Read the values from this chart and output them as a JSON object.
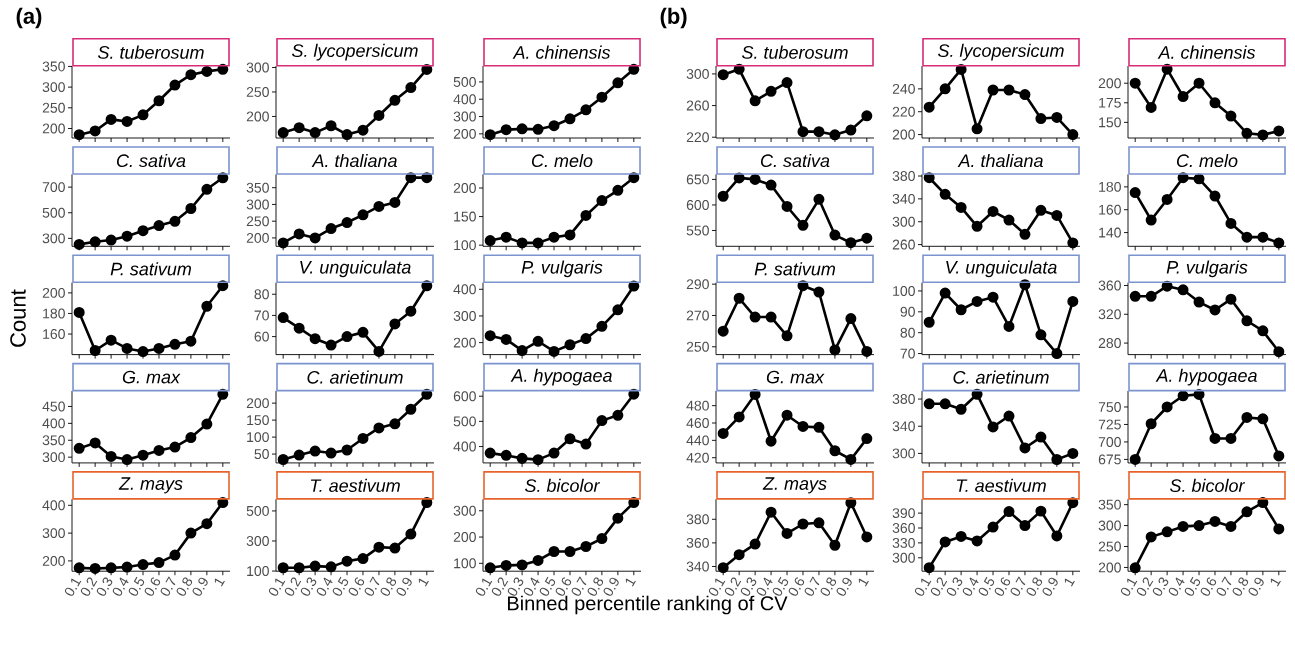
{
  "chart_data": [
    {
      "type": "line",
      "title": "S. tuberosum",
      "annotations": [
        "(a)"
      ],
      "categories": [
        null,
        null,
        null,
        null,
        null,
        null,
        null,
        null,
        null,
        null
      ],
      "values": [
        185,
        194,
        222,
        217,
        233,
        267,
        305,
        330,
        338,
        343
      ],
      "color": "#000000",
      "marker": "circle",
      "ylim": [
        177,
        351
      ],
      "yticks": [
        200,
        250,
        300,
        350
      ],
      "tick_labels": "y"
    },
    {
      "type": "line",
      "title": "S. lycopersicum",
      "categories": [
        null,
        null,
        null,
        null,
        null,
        null,
        null,
        null,
        null,
        null
      ],
      "values": [
        167,
        177,
        167,
        181,
        163,
        172,
        202,
        233,
        259,
        296
      ],
      "color": "#000000",
      "marker": "circle",
      "ylim": [
        156,
        303
      ],
      "yticks": [
        200,
        250,
        300
      ],
      "tick_labels": "y"
    },
    {
      "type": "line",
      "title": "A. chinensis",
      "categories": [
        null,
        null,
        null,
        null,
        null,
        null,
        null,
        null,
        null,
        null
      ],
      "values": [
        195,
        224,
        229,
        226,
        247,
        287,
        339,
        412,
        495,
        573
      ],
      "color": "#000000",
      "marker": "circle",
      "ylim": [
        176,
        592
      ],
      "yticks": [
        200,
        300,
        400,
        500
      ],
      "tick_labels": "y"
    },
    {
      "type": "line",
      "title": "C. sativa",
      "categories": [
        null,
        null,
        null,
        null,
        null,
        null,
        null,
        null,
        null,
        null
      ],
      "values": [
        253,
        273,
        287,
        317,
        360,
        400,
        433,
        533,
        683,
        773
      ],
      "color": "#000000",
      "marker": "circle",
      "ylim": [
        238,
        800
      ],
      "yticks": [
        300,
        500,
        700
      ],
      "tick_labels": "y"
    },
    {
      "type": "line",
      "title": "A. thaliana",
      "categories": [
        null,
        null,
        null,
        null,
        null,
        null,
        null,
        null,
        null,
        null
      ],
      "values": [
        185,
        212,
        200,
        228,
        246,
        269,
        294,
        306,
        380,
        380
      ],
      "color": "#000000",
      "marker": "circle",
      "ylim": [
        175,
        390
      ],
      "yticks": [
        200,
        250,
        300,
        350
      ],
      "tick_labels": "y"
    },
    {
      "type": "line",
      "title": "C. melo",
      "categories": [
        null,
        null,
        null,
        null,
        null,
        null,
        null,
        null,
        null,
        null
      ],
      "values": [
        108,
        114,
        104,
        104,
        114,
        118,
        152,
        178,
        196,
        218
      ],
      "color": "#000000",
      "marker": "circle",
      "ylim": [
        98,
        224
      ],
      "yticks": [
        100,
        150,
        200
      ],
      "tick_labels": "y"
    },
    {
      "type": "line",
      "title": "P. sativum",
      "ylabel": "Count",
      "categories": [
        null,
        null,
        null,
        null,
        null,
        null,
        null,
        null,
        null,
        null
      ],
      "values": [
        181,
        144,
        154,
        146,
        143,
        146,
        150,
        153,
        187,
        207
      ],
      "color": "#000000",
      "marker": "circle",
      "ylim": [
        140,
        210
      ],
      "yticks": [
        160,
        180,
        200
      ],
      "tick_labels": "y"
    },
    {
      "type": "line",
      "title": "V. unguiculata",
      "categories": [
        null,
        null,
        null,
        null,
        null,
        null,
        null,
        null,
        null,
        null
      ],
      "values": [
        69,
        64,
        59,
        56,
        60,
        62,
        53,
        66,
        72,
        84
      ],
      "color": "#000000",
      "marker": "circle",
      "ylim": [
        51.5,
        85.5
      ],
      "yticks": [
        60,
        70,
        80
      ],
      "tick_labels": "y"
    },
    {
      "type": "line",
      "title": "P. vulgaris",
      "categories": [
        null,
        null,
        null,
        null,
        null,
        null,
        null,
        null,
        null,
        null
      ],
      "values": [
        226,
        212,
        170,
        205,
        167,
        192,
        215,
        261,
        323,
        412
      ],
      "color": "#000000",
      "marker": "circle",
      "ylim": [
        155,
        425
      ],
      "yticks": [
        200,
        300,
        400
      ],
      "tick_labels": "y"
    },
    {
      "type": "line",
      "title": "G. max",
      "categories": [
        null,
        null,
        null,
        null,
        null,
        null,
        null,
        null,
        null,
        null
      ],
      "values": [
        326,
        342,
        302,
        293,
        306,
        320,
        330,
        358,
        398,
        486
      ],
      "color": "#000000",
      "marker": "circle",
      "ylim": [
        283,
        496
      ],
      "yticks": [
        300,
        350,
        400,
        450
      ],
      "tick_labels": "y"
    },
    {
      "type": "line",
      "title": "C. arietinum",
      "categories": [
        null,
        null,
        null,
        null,
        null,
        null,
        null,
        null,
        null,
        null
      ],
      "values": [
        34,
        47,
        59,
        53,
        62,
        96,
        127,
        139,
        182,
        226
      ],
      "color": "#000000",
      "marker": "circle",
      "ylim": [
        24,
        236
      ],
      "yticks": [
        50,
        100,
        150,
        200
      ],
      "tick_labels": "y"
    },
    {
      "type": "line",
      "title": "A. hypogaea",
      "categories": [
        null,
        null,
        null,
        null,
        null,
        null,
        null,
        null,
        null,
        null
      ],
      "values": [
        374,
        365,
        353,
        348,
        374,
        431,
        410,
        503,
        524,
        608
      ],
      "color": "#000000",
      "marker": "circle",
      "ylim": [
        335,
        621
      ],
      "yticks": [
        400,
        500,
        600
      ],
      "tick_labels": "y"
    },
    {
      "type": "line",
      "title": "Z. mays",
      "categories": [
        "0.1",
        "0.2",
        "0.3",
        "0.4",
        "0.5",
        "0.6",
        "0.7",
        "0.8",
        "0.9",
        "1"
      ],
      "values": [
        175,
        173,
        175,
        178,
        187,
        194,
        221,
        300,
        334,
        410
      ],
      "color": "#000000",
      "marker": "circle",
      "ylim": [
        163,
        422
      ],
      "yticks": [
        200,
        300,
        400
      ]
    },
    {
      "type": "line",
      "title": "T. aestivum",
      "categories": [
        "0.1",
        "0.2",
        "0.3",
        "0.4",
        "0.5",
        "0.6",
        "0.7",
        "0.8",
        "0.9",
        "1"
      ],
      "values": [
        122,
        122,
        133,
        128,
        166,
        183,
        259,
        253,
        346,
        556
      ],
      "color": "#000000",
      "marker": "circle",
      "ylim": [
        99,
        578
      ],
      "yticks": [
        100,
        300,
        500
      ]
    },
    {
      "type": "line",
      "title": "S. bicolor",
      "xlabel": "Binned percentile ranking of CV",
      "categories": [
        "0.1",
        "0.2",
        "0.3",
        "0.4",
        "0.5",
        "0.6",
        "0.7",
        "0.8",
        "0.9",
        "1"
      ],
      "values": [
        83,
        92,
        94,
        111,
        145,
        145,
        164,
        194,
        272,
        331
      ],
      "color": "#000000",
      "marker": "circle",
      "ylim": [
        70,
        344
      ],
      "yticks": [
        100,
        200,
        300
      ]
    },
    {
      "type": "line",
      "title": "S. tuberosum",
      "annotations": [
        "(b)"
      ],
      "categories": [
        null,
        null,
        null,
        null,
        null,
        null,
        null,
        null,
        null,
        null
      ],
      "values": [
        299,
        306,
        266,
        278,
        289,
        227,
        227,
        223,
        229,
        247
      ],
      "color": "#000000",
      "marker": "circle",
      "ylim": [
        219,
        310
      ],
      "yticks": [
        220,
        260,
        300
      ],
      "tick_labels": "y"
    },
    {
      "type": "line",
      "title": "S. lycopersicum",
      "categories": [
        null,
        null,
        null,
        null,
        null,
        null,
        null,
        null,
        null,
        null
      ],
      "values": [
        224,
        240,
        257,
        205,
        239,
        239,
        235,
        214,
        215,
        200
      ],
      "color": "#000000",
      "marker": "circle",
      "ylim": [
        197,
        260
      ],
      "yticks": [
        200,
        220,
        240
      ],
      "tick_labels": "y"
    },
    {
      "type": "line",
      "title": "A. chinensis",
      "categories": [
        null,
        null,
        null,
        null,
        null,
        null,
        null,
        null,
        null,
        null
      ],
      "values": [
        200,
        169,
        218,
        183,
        200,
        175,
        158,
        136,
        134,
        139
      ],
      "color": "#000000",
      "marker": "circle",
      "ylim": [
        130,
        222
      ],
      "yticks": [
        150,
        175,
        200
      ],
      "tick_labels": "y"
    },
    {
      "type": "line",
      "title": "C. sativa",
      "categories": [
        null,
        null,
        null,
        null,
        null,
        null,
        null,
        null,
        null,
        null
      ],
      "values": [
        617,
        653,
        650,
        639,
        597,
        560,
        611,
        541,
        526,
        535
      ],
      "color": "#000000",
      "marker": "circle",
      "ylim": [
        519,
        660
      ],
      "yticks": [
        550,
        600,
        650
      ],
      "tick_labels": "y"
    },
    {
      "type": "line",
      "title": "A. thaliana",
      "categories": [
        null,
        null,
        null,
        null,
        null,
        null,
        null,
        null,
        null,
        null
      ],
      "values": [
        377,
        348,
        325,
        292,
        318,
        303,
        278,
        320,
        311,
        263
      ],
      "color": "#000000",
      "marker": "circle",
      "ylim": [
        257,
        383
      ],
      "yticks": [
        260,
        300,
        340,
        380
      ],
      "tick_labels": "y"
    },
    {
      "type": "line",
      "title": "C. melo",
      "categories": [
        null,
        null,
        null,
        null,
        null,
        null,
        null,
        null,
        null,
        null
      ],
      "values": [
        175,
        151,
        169,
        188,
        187,
        172,
        148,
        136,
        136,
        131
      ],
      "color": "#000000",
      "marker": "circle",
      "ylim": [
        128,
        191
      ],
      "yticks": [
        140,
        160,
        180
      ],
      "tick_labels": "y"
    },
    {
      "type": "line",
      "title": "P. sativum",
      "categories": [
        null,
        null,
        null,
        null,
        null,
        null,
        null,
        null,
        null,
        null
      ],
      "values": [
        260,
        281,
        269,
        269,
        257,
        289,
        285,
        248,
        268,
        247
      ],
      "color": "#000000",
      "marker": "circle",
      "ylim": [
        245,
        291
      ],
      "yticks": [
        250,
        270,
        290
      ],
      "tick_labels": "y"
    },
    {
      "type": "line",
      "title": "V. unguiculata",
      "categories": [
        null,
        null,
        null,
        null,
        null,
        null,
        null,
        null,
        null,
        null
      ],
      "values": [
        85,
        99,
        91,
        95,
        97,
        83,
        103,
        79,
        70,
        95
      ],
      "color": "#000000",
      "marker": "circle",
      "ylim": [
        69.5,
        104
      ],
      "yticks": [
        70,
        80,
        90,
        100
      ],
      "tick_labels": "y"
    },
    {
      "type": "line",
      "title": "P. vulgaris",
      "categories": [
        null,
        null,
        null,
        null,
        null,
        null,
        null,
        null,
        null,
        null
      ],
      "values": [
        345,
        345,
        359,
        354,
        337,
        326,
        341,
        311,
        297,
        268
      ],
      "color": "#000000",
      "marker": "circle",
      "ylim": [
        264,
        364
      ],
      "yticks": [
        280,
        320,
        360
      ],
      "tick_labels": "y"
    },
    {
      "type": "line",
      "title": "G. max",
      "categories": [
        null,
        null,
        null,
        null,
        null,
        null,
        null,
        null,
        null,
        null
      ],
      "values": [
        448,
        467,
        493,
        439,
        469,
        456,
        455,
        428,
        418,
        442
      ],
      "color": "#000000",
      "marker": "circle",
      "ylim": [
        414,
        497
      ],
      "yticks": [
        420,
        440,
        460,
        480
      ],
      "tick_labels": "y"
    },
    {
      "type": "line",
      "title": "C. arietinum",
      "categories": [
        null,
        null,
        null,
        null,
        null,
        null,
        null,
        null,
        null,
        null
      ],
      "values": [
        373,
        373,
        365,
        387,
        339,
        355,
        308,
        324,
        291,
        300
      ],
      "color": "#000000",
      "marker": "circle",
      "ylim": [
        286,
        392
      ],
      "yticks": [
        300,
        340,
        380
      ],
      "tick_labels": "y"
    },
    {
      "type": "line",
      "title": "A. hypogaea",
      "categories": [
        null,
        null,
        null,
        null,
        null,
        null,
        null,
        null,
        null,
        null
      ],
      "values": [
        675,
        726,
        750,
        766,
        768,
        705,
        705,
        735,
        733,
        680
      ],
      "color": "#000000",
      "marker": "circle",
      "ylim": [
        670,
        773
      ],
      "yticks": [
        675,
        700,
        725,
        750
      ],
      "tick_labels": "y"
    },
    {
      "type": "line",
      "title": "Z. mays",
      "categories": [
        "0.1",
        "0.2",
        "0.3",
        "0.4",
        "0.5",
        "0.6",
        "0.7",
        "0.8",
        "0.9",
        "1"
      ],
      "values": [
        339,
        350,
        359,
        386,
        368,
        376,
        377,
        358,
        394,
        365
      ],
      "color": "#000000",
      "marker": "circle",
      "ylim": [
        336,
        397
      ],
      "yticks": [
        340,
        360,
        380
      ]
    },
    {
      "type": "line",
      "title": "T. aestivum",
      "categories": [
        "0.1",
        "0.2",
        "0.3",
        "0.4",
        "0.5",
        "0.6",
        "0.7",
        "0.8",
        "0.9",
        "1"
      ],
      "values": [
        280,
        332,
        343,
        334,
        362,
        393,
        365,
        394,
        344,
        411
      ],
      "color": "#000000",
      "marker": "circle",
      "ylim": [
        273,
        418
      ],
      "yticks": [
        300,
        330,
        360,
        390
      ]
    },
    {
      "type": "line",
      "title": "S. bicolor",
      "categories": [
        "0.1",
        "0.2",
        "0.3",
        "0.4",
        "0.5",
        "0.6",
        "0.7",
        "0.8",
        "0.9",
        "1"
      ],
      "values": [
        199,
        273,
        285,
        298,
        300,
        310,
        298,
        333,
        355,
        292
      ],
      "color": "#000000",
      "marker": "circle",
      "ylim": [
        191,
        363
      ],
      "yticks": [
        200,
        250,
        300,
        350
      ]
    }
  ]
}
